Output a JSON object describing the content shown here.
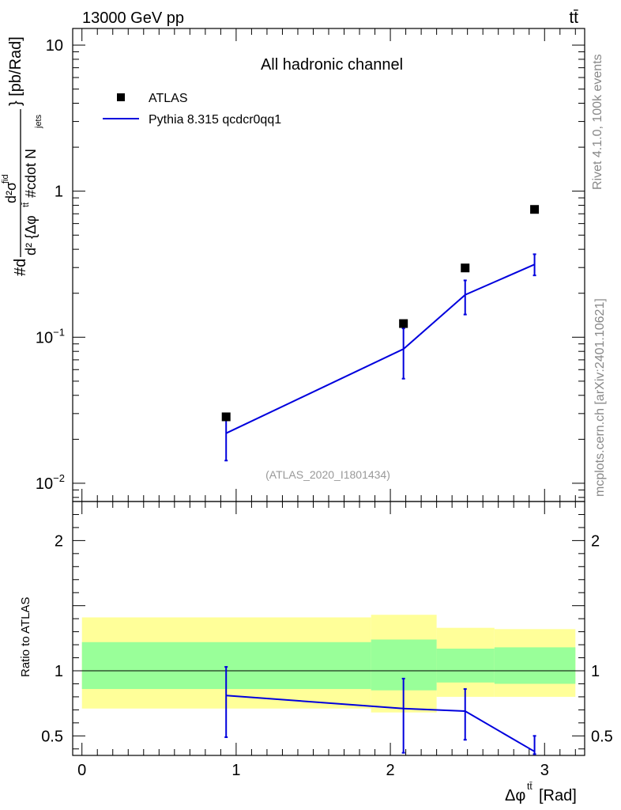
{
  "chart_data": [
    {
      "type": "scatter",
      "panel": "main",
      "header_left": "13000 GeV pp",
      "header_right": "tt̄",
      "title": "All hadronic channel",
      "watermark": "(ATLAS_2020_I1801434)",
      "side_label_top": "Rivet 4.1.0,  100k events",
      "side_label_bottom": "mcplots.cern.ch [arXiv:2401.10621]",
      "ylabel_parts": {
        "num": "#d",
        "frac_top": "d²σ",
        "frac_top_sup": "fid",
        "frac_bottom": "d² {Δφ",
        "frac_bottom_sup": "tt̄",
        "frac_bottom_tail": " #cdot N",
        "frac_bottom_sub": "jets",
        "tail": "} [pb/Rad]"
      },
      "yscale": "log",
      "ylim": [
        0.0075,
        13
      ],
      "xlim": [
        -0.06,
        3.26
      ],
      "yticks": [
        {
          "value": 0.01,
          "base": "10",
          "exp": "−2"
        },
        {
          "value": 0.1,
          "base": "10",
          "exp": "−1"
        },
        {
          "value": 1,
          "base": "1",
          "exp": ""
        },
        {
          "value": 10,
          "base": "10",
          "exp": ""
        }
      ],
      "legend": [
        {
          "label": "ATLAS",
          "kind": "marker"
        },
        {
          "label": "Pythia 8.315 qcdcr0qq1",
          "kind": "line"
        }
      ],
      "series": [
        {
          "name": "ATLAS",
          "color": "#000000",
          "x": [
            0.935,
            2.085,
            2.485,
            2.935
          ],
          "y": [
            0.0285,
            0.124,
            0.298,
            0.75
          ]
        },
        {
          "name": "Pythia 8.315 qcdcr0qq1",
          "color": "#0000dd",
          "x": [
            0.935,
            2.085,
            2.485,
            2.935
          ],
          "y": [
            0.022,
            0.083,
            0.195,
            0.315
          ],
          "err_low": [
            0.0143,
            0.052,
            0.143,
            0.265
          ],
          "err_high": [
            0.0297,
            0.115,
            0.245,
            0.37
          ]
        }
      ]
    },
    {
      "type": "line",
      "panel": "ratio",
      "ylabel": "Ratio to ATLAS",
      "xlabel_parts": {
        "base": "Δφ",
        "sup": "tt̄",
        "tail": " [Rad]"
      },
      "ylim": [
        0.35,
        2.3
      ],
      "xlim": [
        -0.06,
        3.26
      ],
      "xticks": [
        "0",
        "1",
        "2",
        "3"
      ],
      "yticks": [
        "0.5",
        "1",
        "2"
      ],
      "bands": {
        "bins": [
          0.0,
          1.875,
          2.3,
          2.675,
          3.2
        ],
        "yellow_low": [
          0.71,
          0.68,
          0.8,
          0.8
        ],
        "yellow_high": [
          1.41,
          1.43,
          1.33,
          1.32
        ],
        "green_low": [
          0.86,
          0.85,
          0.91,
          0.9
        ],
        "green_high": [
          1.22,
          1.24,
          1.17,
          1.18
        ]
      },
      "series": [
        {
          "name": "Pythia 8.315 qcdcr0qq1 / ATLAS",
          "color": "#0000dd",
          "x": [
            0.935,
            2.085,
            2.485,
            2.935
          ],
          "y": [
            0.81,
            0.71,
            0.69,
            0.38
          ],
          "err_low": [
            0.49,
            0.37,
            0.47,
            0.36
          ],
          "err_high": [
            1.03,
            0.94,
            0.86,
            0.5
          ]
        }
      ]
    }
  ]
}
